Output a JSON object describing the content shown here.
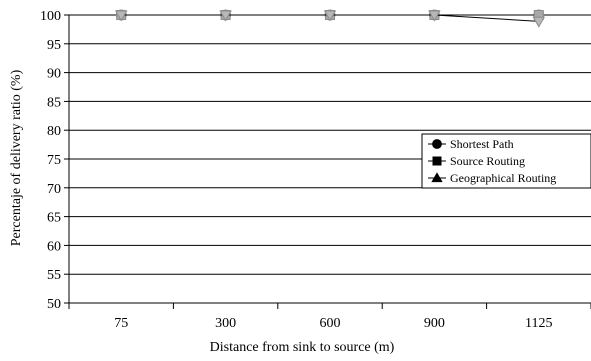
{
  "chart_data": {
    "type": "line",
    "title": "",
    "xlabel": "Distance from sink to source (m)",
    "ylabel": "Percentaje of delivery  ratio (%)",
    "categories": [
      "75",
      "300",
      "600",
      "900",
      "1125"
    ],
    "ylim": [
      50,
      100
    ],
    "yticks": [
      50,
      55,
      60,
      65,
      70,
      75,
      80,
      85,
      90,
      95,
      100
    ],
    "grid": "horizontal",
    "legend_position": "right",
    "series": [
      {
        "name": "Shortest Path",
        "marker": "circle",
        "color": "#000000",
        "values": [
          100,
          100,
          100,
          100,
          100
        ]
      },
      {
        "name": "Source Routing",
        "marker": "square",
        "color": "#000000",
        "values": [
          100,
          100,
          100,
          100,
          100
        ]
      },
      {
        "name": "Geographical Routing",
        "marker": "triangle",
        "color": "#000000",
        "values": [
          100,
          100,
          100,
          100,
          98.9
        ]
      }
    ]
  }
}
